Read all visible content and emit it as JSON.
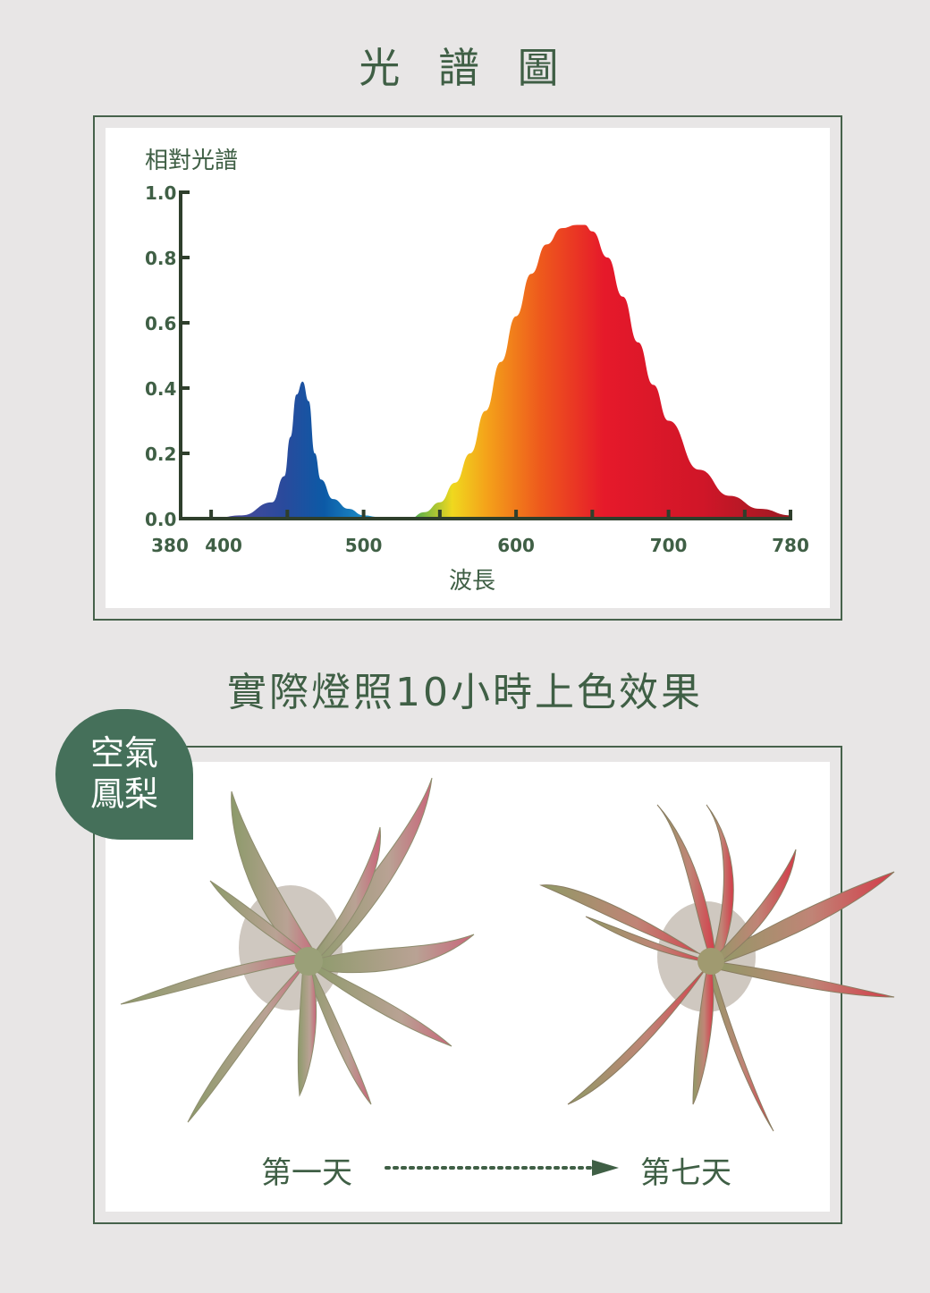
{
  "headings": {
    "spectrum": "光 譜 圖",
    "effect": "實際燈照10小時上色效果"
  },
  "badge": [
    "空氣",
    "鳳梨"
  ],
  "days": {
    "start": "第一天",
    "end": "第七天"
  },
  "colors": {
    "accent": "#3f5f45",
    "badge": "#45705a",
    "background": "#e8e6e6"
  },
  "chart_data": {
    "type": "area",
    "title": "",
    "xlabel": "波長",
    "ylabel": "相對光譜",
    "xlim": [
      380,
      780
    ],
    "ylim": [
      0,
      1.0
    ],
    "x_ticks": [
      380,
      400,
      500,
      600,
      700,
      780
    ],
    "x_tick_labels": [
      "380",
      "400",
      "500",
      "600",
      "700",
      "780"
    ],
    "x_minor_ticks": [
      450,
      550,
      650,
      750
    ],
    "y_ticks": [
      0,
      0.2,
      0.4,
      0.6,
      0.8,
      1.0
    ],
    "y_tick_labels": [
      "0.0",
      "0.2",
      "0.4",
      "0.6",
      "0.8",
      "1.0"
    ],
    "grid": false,
    "series": [
      {
        "x": [
          400,
          420,
          440,
          448,
          452,
          456,
          460,
          464,
          468,
          472,
          480,
          490,
          500,
          510,
          520,
          530,
          540,
          550,
          560,
          570,
          580,
          590,
          600,
          610,
          620,
          630,
          640,
          645,
          650,
          660,
          670,
          680,
          690,
          700,
          720,
          740,
          760,
          780
        ],
        "y": [
          0.0,
          0.01,
          0.05,
          0.13,
          0.25,
          0.38,
          0.42,
          0.36,
          0.2,
          0.12,
          0.06,
          0.03,
          0.01,
          0.005,
          0.0,
          0.0,
          0.02,
          0.05,
          0.11,
          0.2,
          0.33,
          0.48,
          0.62,
          0.75,
          0.84,
          0.89,
          0.9,
          0.9,
          0.88,
          0.8,
          0.68,
          0.54,
          0.41,
          0.3,
          0.15,
          0.07,
          0.03,
          0.01
        ]
      }
    ]
  }
}
